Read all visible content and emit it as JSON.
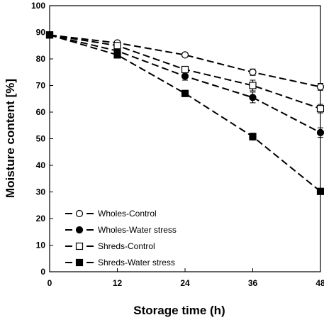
{
  "chart_data": {
    "type": "line",
    "xlabel": "Storage time (h)",
    "ylabel": "Moisture content [%]",
    "xlim": [
      0,
      48
    ],
    "ylim": [
      0,
      100
    ],
    "x_ticks": [
      0,
      12,
      24,
      36,
      48
    ],
    "y_ticks": [
      0,
      10,
      20,
      30,
      40,
      50,
      60,
      70,
      80,
      90,
      100
    ],
    "x": [
      0,
      12,
      24,
      36,
      48
    ],
    "grid": false,
    "legend_position": "bottom-left",
    "series": [
      {
        "name": "Wholes-Control",
        "marker": "circle-open",
        "line": "dashed",
        "color": "#000000",
        "values": [
          89,
          86,
          81.5,
          75,
          69.5
        ],
        "errors": [
          0.5,
          0.7,
          0.8,
          1.2,
          1.3
        ]
      },
      {
        "name": "Wholes-Water stress",
        "marker": "circle-filled",
        "line": "dashed",
        "color": "#000000",
        "values": [
          89,
          83,
          73.5,
          65.5,
          52.3
        ],
        "errors": [
          0.5,
          0.8,
          1.5,
          2.0,
          1.8
        ]
      },
      {
        "name": "Shreds-Control",
        "marker": "square-open",
        "line": "dashed",
        "color": "#000000",
        "values": [
          89,
          85,
          76,
          70,
          61.3
        ],
        "errors": [
          0.5,
          0.8,
          1.0,
          2.0,
          1.6
        ]
      },
      {
        "name": "Shreds-Water stress",
        "marker": "square-filled",
        "line": "dashed",
        "color": "#000000",
        "values": [
          89,
          81.5,
          67,
          50.8,
          30.2
        ],
        "errors": [
          0.5,
          0.8,
          0.8,
          1.3,
          0.7
        ]
      }
    ]
  }
}
